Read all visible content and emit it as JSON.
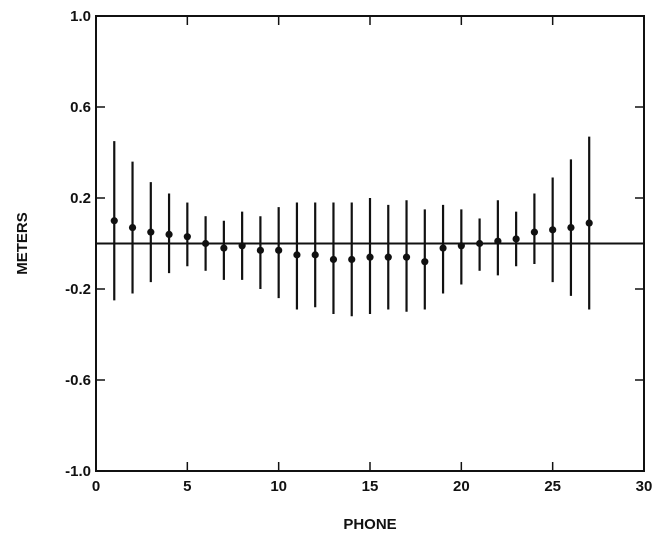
{
  "chart_data": {
    "type": "scatter",
    "xlabel": "PHONE",
    "ylabel": "METERS",
    "xlim": [
      0,
      30
    ],
    "ylim": [
      -1.0,
      1.0
    ],
    "x_ticks": [
      0,
      5,
      10,
      15,
      20,
      25,
      30
    ],
    "x_tick_labels": [
      "0",
      "5",
      "10",
      "15",
      "20",
      "25",
      "30"
    ],
    "y_ticks": [
      -1.0,
      -0.6,
      -0.2,
      0.2,
      0.6,
      1.0
    ],
    "y_tick_labels": [
      "-1.0",
      "-0.6",
      "-0.2",
      "0.2",
      "0.6",
      "1.0"
    ],
    "reference_line_y": 0,
    "grid": false,
    "series": [
      {
        "x": [
          1,
          2,
          3,
          4,
          5,
          6,
          7,
          8,
          9,
          10,
          11,
          12,
          13,
          14,
          15,
          16,
          17,
          18,
          19,
          20,
          21,
          22,
          23,
          24,
          25,
          26,
          27
        ],
        "y": [
          0.1,
          0.07,
          0.05,
          0.04,
          0.03,
          0.0,
          -0.02,
          -0.01,
          -0.03,
          -0.03,
          -0.05,
          -0.05,
          -0.07,
          -0.07,
          -0.06,
          -0.06,
          -0.06,
          -0.08,
          -0.02,
          -0.01,
          0.0,
          0.01,
          0.02,
          0.05,
          0.06,
          0.07,
          0.09
        ],
        "err_low": [
          -0.25,
          -0.22,
          -0.17,
          -0.13,
          -0.1,
          -0.12,
          -0.16,
          -0.16,
          -0.2,
          -0.24,
          -0.29,
          -0.28,
          -0.31,
          -0.32,
          -0.31,
          -0.29,
          -0.3,
          -0.29,
          -0.22,
          -0.18,
          -0.12,
          -0.14,
          -0.1,
          -0.09,
          -0.17,
          -0.23,
          -0.29
        ],
        "err_high": [
          0.45,
          0.36,
          0.27,
          0.22,
          0.18,
          0.12,
          0.1,
          0.14,
          0.12,
          0.16,
          0.18,
          0.18,
          0.18,
          0.18,
          0.2,
          0.17,
          0.19,
          0.15,
          0.17,
          0.15,
          0.11,
          0.19,
          0.14,
          0.22,
          0.29,
          0.37,
          0.47
        ]
      }
    ]
  }
}
